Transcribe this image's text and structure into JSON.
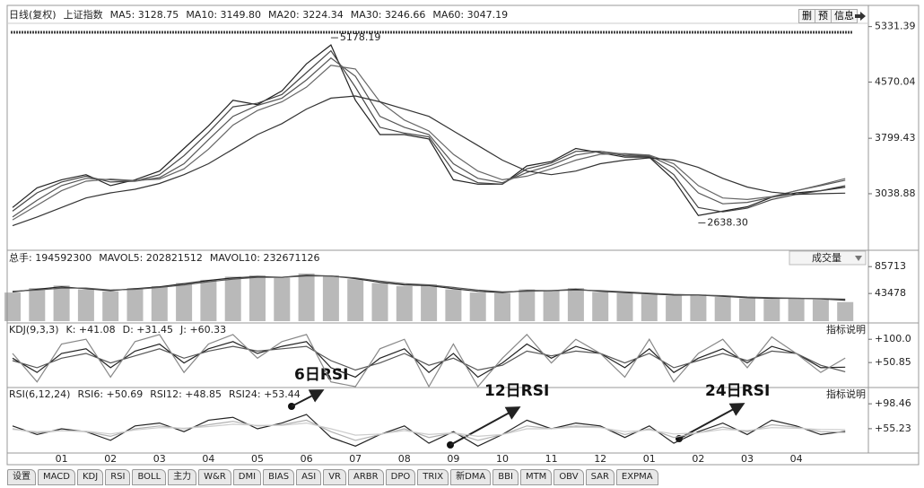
{
  "toolbar": {
    "period": "日线(复权)",
    "index": "上证指数",
    "buttons": [
      "删",
      "预",
      "信息"
    ]
  },
  "chart_data": [
    {
      "type": "line",
      "ylim": [
        2300,
        5450
      ],
      "yticks": [
        5331.39,
        4570.04,
        3799.43,
        3038.88
      ],
      "series": [
        {
          "name": "MA5: 3128.75",
          "color": "#222222",
          "values": [
            2850,
            3120,
            3230,
            3300,
            3150,
            3230,
            3350,
            3660,
            3970,
            4320,
            4260,
            4450,
            4820,
            5080,
            4320,
            3850,
            3850,
            3790,
            3230,
            3170,
            3170,
            3420,
            3480,
            3660,
            3600,
            3540,
            3540,
            3230,
            2740,
            2800,
            2860,
            2990,
            3050,
            3080,
            3128.75
          ]
        },
        {
          "name": "MA10: 3149.80",
          "color": "#444444",
          "values": [
            2800,
            3050,
            3200,
            3280,
            3200,
            3210,
            3300,
            3560,
            3880,
            4230,
            4280,
            4400,
            4700,
            5000,
            4500,
            3950,
            3870,
            3820,
            3350,
            3190,
            3170,
            3380,
            3460,
            3620,
            3620,
            3560,
            3550,
            3300,
            2850,
            2790,
            2840,
            2960,
            3030,
            3080,
            3149.8
          ]
        },
        {
          "name": "MA20: 3224.34",
          "color": "#555555",
          "values": [
            2720,
            2950,
            3150,
            3250,
            3230,
            3210,
            3260,
            3450,
            3780,
            4100,
            4250,
            4350,
            4600,
            4900,
            4650,
            4100,
            3950,
            3850,
            3450,
            3250,
            3190,
            3330,
            3430,
            3570,
            3620,
            3580,
            3560,
            3400,
            3050,
            2900,
            2920,
            2990,
            3080,
            3150,
            3224.34
          ]
        },
        {
          "name": "MA30: 3246.66",
          "color": "#666666",
          "values": [
            2680,
            2880,
            3080,
            3210,
            3240,
            3220,
            3240,
            3380,
            3650,
            3980,
            4180,
            4300,
            4500,
            4800,
            4750,
            4300,
            4050,
            3900,
            3580,
            3350,
            3230,
            3280,
            3380,
            3500,
            3580,
            3590,
            3570,
            3450,
            3150,
            2980,
            2960,
            3000,
            3080,
            3160,
            3246.66
          ]
        },
        {
          "name": "MA60: 3047.19",
          "color": "#333333",
          "values": [
            2600,
            2720,
            2850,
            2980,
            3050,
            3100,
            3180,
            3300,
            3450,
            3650,
            3850,
            4000,
            4200,
            4350,
            4380,
            4300,
            4200,
            4100,
            3900,
            3700,
            3500,
            3350,
            3300,
            3350,
            3450,
            3500,
            3530,
            3500,
            3400,
            3250,
            3130,
            3060,
            3030,
            3040,
            3047.19
          ]
        }
      ],
      "annotations": [
        {
          "x": 13,
          "value": 5178.19
        },
        {
          "x": 28,
          "value": 2638.3,
          "label": "2638.30"
        }
      ]
    },
    {
      "type": "bar",
      "ylim": [
        0,
        110000
      ],
      "yticks": [
        85713,
        43478
      ],
      "dropdown": "成交量",
      "series": [
        {
          "name": "总手: 194592300",
          "color": "#8a8a8a",
          "values": [
            45000,
            52000,
            56000,
            50000,
            47000,
            52000,
            55000,
            60000,
            65000,
            70000,
            72000,
            68000,
            75000,
            72000,
            66000,
            60000,
            55000,
            58000,
            50000,
            45000,
            44000,
            50000,
            48000,
            52000,
            46000,
            44000,
            42000,
            40000,
            42000,
            38000,
            36000,
            35000,
            36000,
            34000,
            30000
          ]
        },
        {
          "name": "MAVOL5: 202821512",
          "type": "line",
          "color": "#222222",
          "values": [
            46000,
            50000,
            54000,
            51000,
            48000,
            51000,
            54000,
            59000,
            64000,
            68000,
            70000,
            69000,
            72000,
            71000,
            67000,
            61000,
            57000,
            56000,
            51000,
            47000,
            45000,
            48000,
            48000,
            50000,
            47000,
            45000,
            43000,
            41000,
            41000,
            39000,
            37000,
            36000,
            36000,
            35000,
            33000
          ]
        },
        {
          "name": "MAVOL10: 232671126",
          "type": "line",
          "color": "#555555",
          "values": [
            47000,
            49000,
            52000,
            52000,
            49000,
            50000,
            53000,
            57000,
            62000,
            66000,
            69000,
            69000,
            71000,
            71000,
            68000,
            63000,
            59000,
            57000,
            53000,
            49000,
            46000,
            47000,
            48000,
            49000,
            48000,
            46000,
            44000,
            42000,
            41000,
            40000,
            38000,
            37000,
            36000,
            35500,
            34500
          ]
        }
      ]
    },
    {
      "type": "line",
      "title": "KDJ(9,3,3)",
      "note": "指标说明",
      "ylim": [
        0,
        125
      ],
      "yticks": [
        {
          "value": 100,
          "label": "+100.0"
        },
        {
          "value": 50.85,
          "label": "+50.85"
        }
      ],
      "series": [
        {
          "name": "K: +41.08",
          "color": "#222222",
          "values": [
            60,
            30,
            70,
            80,
            40,
            75,
            90,
            50,
            80,
            95,
            70,
            85,
            95,
            40,
            20,
            60,
            80,
            30,
            70,
            20,
            50,
            90,
            60,
            85,
            70,
            40,
            80,
            30,
            60,
            80,
            50,
            85,
            70,
            40,
            41.08
          ]
        },
        {
          "name": "D: +31.45",
          "color": "#555555",
          "values": [
            55,
            40,
            60,
            70,
            50,
            65,
            80,
            60,
            75,
            85,
            75,
            80,
            85,
            55,
            35,
            50,
            70,
            45,
            60,
            35,
            45,
            75,
            65,
            75,
            70,
            50,
            70,
            40,
            55,
            70,
            55,
            75,
            70,
            45,
            31.45
          ]
        },
        {
          "name": "J: +60.33",
          "color": "#888888",
          "values": [
            70,
            10,
            90,
            100,
            20,
            95,
            110,
            30,
            90,
            110,
            60,
            95,
            110,
            10,
            0,
            80,
            100,
            0,
            90,
            0,
            60,
            110,
            50,
            100,
            70,
            20,
            100,
            10,
            70,
            100,
            40,
            105,
            70,
            30,
            60.33
          ]
        }
      ]
    },
    {
      "type": "line",
      "title": "RSI(6,12,24)",
      "note": "指标说明",
      "ylim": [
        13,
        122
      ],
      "yticks": [
        {
          "value": 98.46,
          "label": "+98.46"
        },
        {
          "value": 55.23,
          "label": "+55.23"
        }
      ],
      "categories": [
        null,
        null,
        "01",
        null,
        "02",
        null,
        "03",
        null,
        "04",
        null,
        "05",
        null,
        "06",
        null,
        "07",
        null,
        "08",
        null,
        "09",
        null,
        "10",
        null,
        "11",
        null,
        "12",
        null,
        "01",
        null,
        "02",
        null,
        "03",
        null,
        "04",
        null,
        null
      ],
      "series": [
        {
          "name": "RSI6: +50.69",
          "color": "#222222",
          "values": [
            60,
            45,
            55,
            50,
            35,
            60,
            65,
            50,
            70,
            75,
            55,
            65,
            80,
            40,
            25,
            45,
            60,
            30,
            50,
            25,
            45,
            70,
            55,
            65,
            60,
            40,
            60,
            30,
            50,
            65,
            45,
            70,
            60,
            45,
            50.69
          ]
        },
        {
          "name": "RSI12: +48.85",
          "color": "#b0b0b0",
          "values": [
            55,
            48,
            52,
            50,
            42,
            55,
            60,
            55,
            62,
            68,
            60,
            62,
            70,
            50,
            35,
            45,
            55,
            40,
            48,
            35,
            45,
            60,
            55,
            60,
            58,
            45,
            55,
            40,
            48,
            58,
            50,
            62,
            58,
            50,
            48.85
          ]
        },
        {
          "name": "RSI24: +53.44",
          "color": "#cccccc",
          "values": [
            54,
            50,
            52,
            51,
            46,
            53,
            57,
            56,
            59,
            63,
            61,
            61,
            65,
            55,
            44,
            46,
            52,
            45,
            48,
            42,
            45,
            55,
            55,
            58,
            57,
            50,
            53,
            46,
            48,
            54,
            52,
            57,
            56,
            54,
            53.44
          ]
        }
      ],
      "annotations": [
        "6日RSI",
        "12日RSI",
        "24日RSI"
      ]
    }
  ],
  "tabs": [
    "设置",
    "MACD",
    "KDJ",
    "RSI",
    "BOLL",
    "主力",
    "W&R",
    "DMI",
    "BIAS",
    "ASI",
    "VR",
    "ARBR",
    "DPO",
    "TRIX",
    "新DMA",
    "BBI",
    "MTM",
    "OBV",
    "SAR",
    "EXPMA"
  ]
}
